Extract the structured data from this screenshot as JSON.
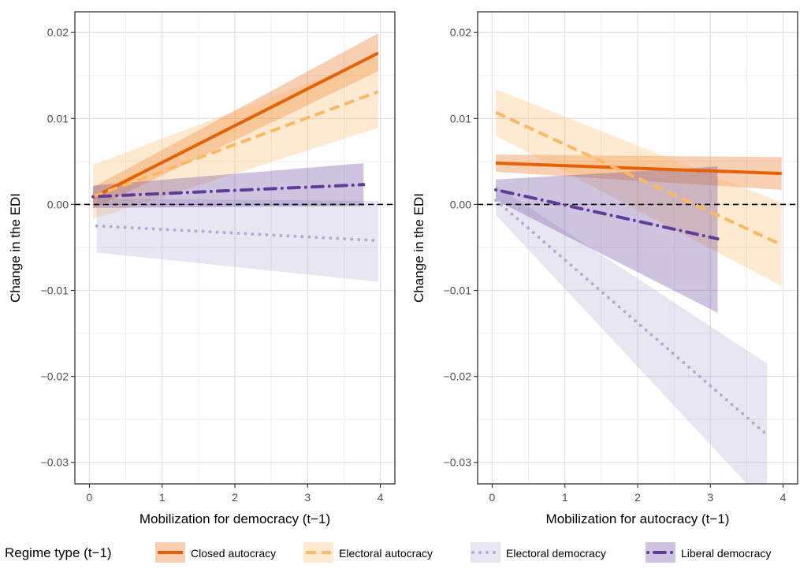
{
  "figure": {
    "legend_title": "Regime type (t−1)",
    "legend_position": "bottom",
    "zero_line": {
      "y": 0,
      "style": "dashed",
      "color": "#000000"
    }
  },
  "chart_data": [
    {
      "type": "line",
      "panel": "left",
      "xlabel": "Mobilization for democracy (t−1)",
      "ylabel": "Change in the EDI",
      "xlim": [
        -0.2,
        4.2
      ],
      "ylim": [
        -0.0325,
        0.0224
      ],
      "x_ticks": [
        0,
        1,
        2,
        3,
        4
      ],
      "x_tick_labels": [
        "0",
        "1",
        "2",
        "3",
        "4"
      ],
      "y_ticks": [
        -0.03,
        -0.02,
        -0.01,
        0.0,
        0.01,
        0.02
      ],
      "y_tick_labels": [
        "−0.03",
        "−0.02",
        "−0.01",
        "0.00",
        "0.01",
        "0.02"
      ],
      "grid": true,
      "series": [
        {
          "name": "Closed autocracy",
          "color": "#E66101",
          "dash": "solid",
          "x": [
            0.05,
            3.97
          ],
          "y": [
            0.0008,
            0.0176
          ],
          "lower": [
            -0.0005,
            0.0155
          ],
          "upper": [
            0.002,
            0.0199
          ]
        },
        {
          "name": "Electoral autocracy",
          "color": "#FDB863",
          "dash": "dashed",
          "x": [
            0.05,
            3.97
          ],
          "y": [
            0.0009,
            0.0131
          ],
          "lower": [
            -0.0017,
            0.0089
          ],
          "upper": [
            0.0046,
            0.0172
          ]
        },
        {
          "name": "Electoral democracy",
          "color": "#B2ABD2",
          "dash": "dotted",
          "x": [
            0.1,
            3.97
          ],
          "y": [
            -0.0025,
            -0.0042
          ],
          "lower": [
            -0.0056,
            -0.009
          ],
          "upper": [
            0.0007,
            0.0004
          ]
        },
        {
          "name": "Liberal democracy",
          "color": "#5E3C99",
          "dash": "dotdash",
          "x": [
            0.05,
            3.77
          ],
          "y": [
            0.0009,
            0.0023
          ],
          "lower": [
            -0.0004,
            -0.0002
          ],
          "upper": [
            0.0022,
            0.0048
          ]
        }
      ]
    },
    {
      "type": "line",
      "panel": "right",
      "xlabel": "Mobilization for autocracy (t−1)",
      "ylabel": "Change in the EDI",
      "xlim": [
        -0.2,
        4.2
      ],
      "ylim": [
        -0.0325,
        0.0224
      ],
      "x_ticks": [
        0,
        1,
        2,
        3,
        4
      ],
      "x_tick_labels": [
        "0",
        "1",
        "2",
        "3",
        "4"
      ],
      "y_ticks": [
        -0.03,
        -0.02,
        -0.01,
        0.0,
        0.01,
        0.02
      ],
      "y_tick_labels": [
        "−0.03",
        "−0.02",
        "−0.01",
        "0.00",
        "0.01",
        "0.02"
      ],
      "grid": true,
      "series": [
        {
          "name": "Closed autocracy",
          "color": "#E66101",
          "dash": "solid",
          "x": [
            0.05,
            3.98
          ],
          "y": [
            0.0048,
            0.0036
          ],
          "lower": [
            0.0038,
            0.0017
          ],
          "upper": [
            0.0058,
            0.0055
          ]
        },
        {
          "name": "Electoral autocracy",
          "color": "#FDB863",
          "dash": "dashed",
          "x": [
            0.05,
            3.98
          ],
          "y": [
            0.0107,
            -0.0047
          ],
          "lower": [
            0.008,
            -0.0095
          ],
          "upper": [
            0.0134,
            0.0002
          ]
        },
        {
          "name": "Electoral democracy",
          "color": "#B2ABD2",
          "dash": "dotted",
          "x": [
            0.05,
            3.78
          ],
          "y": [
            0.0005,
            -0.0268
          ],
          "lower": [
            -0.0012,
            -0.035
          ],
          "upper": [
            0.0022,
            -0.0185
          ]
        },
        {
          "name": "Liberal democracy",
          "color": "#5E3C99",
          "dash": "dotdash",
          "x": [
            0.05,
            3.1
          ],
          "y": [
            0.0017,
            -0.004
          ],
          "lower": [
            0.0005,
            -0.0126
          ],
          "upper": [
            0.0029,
            0.0044
          ]
        }
      ]
    }
  ]
}
